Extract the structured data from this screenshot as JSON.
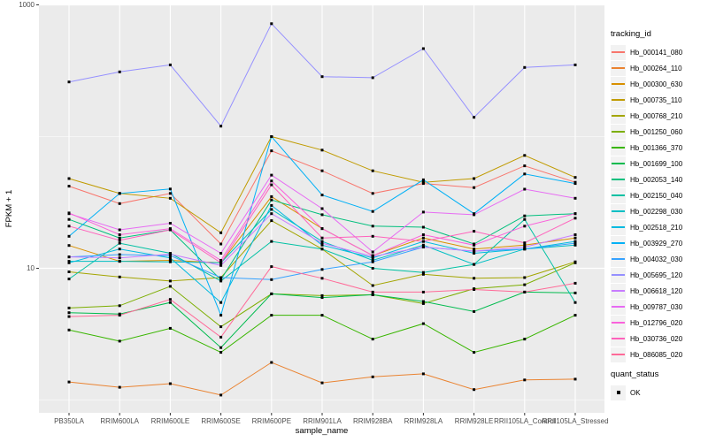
{
  "figure": {
    "background": "#FFFFFF",
    "panel_bg": "#EBEBEB",
    "grid_color": "#FFFFFF",
    "tick_color": "#333333",
    "axis_text_color": "#4D4D4D",
    "point_color": "#000000"
  },
  "axes": {
    "y_title": "FPKM + 1",
    "x_title": "sample_name",
    "y_tick_labels": [
      "1000",
      "10"
    ]
  },
  "legend": {
    "tracking_title": "tracking_id",
    "quant_title": "quant_status",
    "quant_items": [
      {
        "label": "OK"
      }
    ]
  },
  "chart_data": {
    "type": "line",
    "x_axis_label": "sample_name",
    "y_axis_label": "FPKM + 1",
    "y_scale": "log10",
    "ylim": [
      1,
      1000
    ],
    "y_ticks_labeled": [
      1000,
      10
    ],
    "y_gridlines": [
      1000,
      100,
      10,
      1
    ],
    "grid": true,
    "legend_position": "right",
    "point_marker": {
      "shape": "square",
      "color": "#000000"
    },
    "categories": [
      "PB350LA",
      "RRIM600LA",
      "RRIM600LE",
      "RRIM600SE",
      "RRIM600PE",
      "RRIM901LA",
      "RRIM928BA",
      "RRIM928LA",
      "RRIM928LE",
      "RRII105LA_Control",
      "RRII105LA_Stressed"
    ],
    "series": [
      {
        "name": "Hb_000141_080",
        "color": "#F8766D",
        "values": [
          42,
          31,
          37,
          15.3,
          78,
          55,
          37,
          44,
          41,
          60,
          45
        ]
      },
      {
        "name": "Hb_000264_110",
        "color": "#EA8331",
        "values": [
          1.37,
          1.25,
          1.33,
          1.09,
          1.93,
          1.35,
          1.5,
          1.58,
          1.2,
          1.42,
          1.44
        ]
      },
      {
        "name": "Hb_000300_630",
        "color": "#D89000",
        "values": [
          14.9,
          11.3,
          11.5,
          11.0,
          35,
          20,
          12.5,
          17,
          14,
          15,
          17
        ]
      },
      {
        "name": "Hb_000735_110",
        "color": "#C09B00",
        "values": [
          48,
          37,
          34,
          18.6,
          100,
          79,
          55,
          45,
          48,
          72,
          49
        ]
      },
      {
        "name": "Hb_000768_210",
        "color": "#A3A500",
        "values": [
          9.4,
          8.6,
          8.0,
          8.5,
          23,
          14,
          7.4,
          9.0,
          8.4,
          8.5,
          11.2
        ]
      },
      {
        "name": "Hb_001250_060",
        "color": "#7CAE00",
        "values": [
          5.0,
          5.2,
          7.3,
          3.6,
          6.4,
          6.2,
          6.3,
          5.4,
          7.0,
          7.5,
          11.0
        ]
      },
      {
        "name": "Hb_001366_370",
        "color": "#39B600",
        "values": [
          3.4,
          2.8,
          3.5,
          2.3,
          4.4,
          4.4,
          2.9,
          3.8,
          2.3,
          2.9,
          4.4
        ]
      },
      {
        "name": "Hb_001699_100",
        "color": "#00BB4E",
        "values": [
          4.6,
          4.5,
          5.5,
          2.5,
          6.4,
          6.0,
          6.3,
          5.6,
          4.7,
          6.6,
          6.5
        ]
      },
      {
        "name": "Hb_002053_140",
        "color": "#00BF7D",
        "values": [
          23.5,
          17,
          19.6,
          8.2,
          33,
          25.5,
          20.9,
          20.5,
          15.3,
          25,
          26
        ]
      },
      {
        "name": "Hb_002150_040",
        "color": "#00C1A3",
        "values": [
          8.3,
          15.5,
          13,
          8.0,
          16,
          14,
          10,
          9.3,
          10.7,
          23.5,
          5.5
        ]
      },
      {
        "name": "Hb_002298_030",
        "color": "#00BFC4",
        "values": [
          11.3,
          11.3,
          11.2,
          11.0,
          28,
          16,
          11.5,
          15,
          10.7,
          14,
          15
        ]
      },
      {
        "name": "Hb_002518_210",
        "color": "#00BAE0",
        "values": [
          11.0,
          14,
          12,
          5.5,
          30,
          15,
          12,
          16,
          13,
          14,
          16
        ]
      },
      {
        "name": "Hb_003929_270",
        "color": "#00B0F6",
        "values": [
          17.5,
          37,
          40,
          4.4,
          100,
          36,
          27,
          47,
          26,
          52,
          44
        ]
      },
      {
        "name": "Hb_004032_030",
        "color": "#35A2FF",
        "values": [
          12.2,
          12.7,
          12.5,
          8.5,
          8.2,
          9.8,
          11.2,
          14.5,
          13.5,
          14,
          15.5
        ]
      },
      {
        "name": "Hb_005695_120",
        "color": "#9590FF",
        "values": [
          260,
          310,
          350,
          120,
          720,
          285,
          280,
          465,
          140,
          335,
          350
        ]
      },
      {
        "name": "Hb_006618_120",
        "color": "#C77CFF",
        "values": [
          12.2,
          12.0,
          12.8,
          10.5,
          26,
          15.5,
          12.3,
          14.5,
          13.5,
          14.5,
          18
        ]
      },
      {
        "name": "Hb_009787_030",
        "color": "#E76BF3",
        "values": [
          26,
          19.6,
          22,
          13,
          51,
          28.4,
          13.3,
          26.7,
          25.5,
          39.9,
          34
        ]
      },
      {
        "name": "Hb_012796_020",
        "color": "#FA62DB",
        "values": [
          26.3,
          18,
          20,
          11.5,
          46,
          20,
          12.5,
          18,
          15,
          20.9,
          26
        ]
      },
      {
        "name": "Hb_030736_020",
        "color": "#FF62BC",
        "values": [
          20.9,
          16.3,
          19.6,
          11.0,
          43,
          17,
          17.5,
          16,
          19.1,
          15.6,
          24
        ]
      },
      {
        "name": "Hb_086085_020",
        "color": "#FF6A98",
        "values": [
          4.3,
          4.4,
          5.8,
          3.0,
          10.3,
          8.4,
          6.6,
          6.6,
          6.9,
          6.6,
          7.7
        ]
      }
    ]
  }
}
